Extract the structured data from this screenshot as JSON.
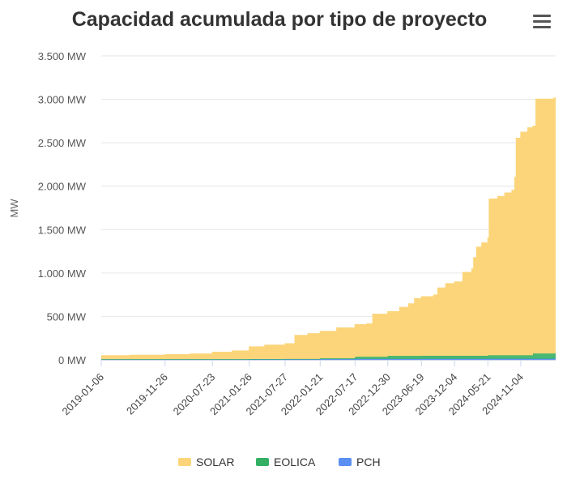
{
  "chart_data": {
    "type": "area",
    "stacked": true,
    "title": "Capacidad acumulada por tipo de proyecto",
    "ylabel": "MW",
    "ylim": [
      0,
      3500
    ],
    "yticks": [
      0,
      500,
      1000,
      1500,
      2000,
      2500,
      3000,
      3500
    ],
    "ytick_labels": [
      "0 MW",
      "500 MW",
      "1.000 MW",
      "1.500 MW",
      "2.000 MW",
      "2.500 MW",
      "3.000 MW",
      "3.500 MW"
    ],
    "x_tick_labels": [
      "2019-01-06",
      "2019-11-26",
      "2020-07-23",
      "2021-01-26",
      "2021-07-27",
      "2022-01-21",
      "2022-07-17",
      "2022-12-30",
      "2023-06-19",
      "2023-12-04",
      "2024-05-21",
      "2024-11-04"
    ],
    "legend_position": "bottom",
    "grid": true,
    "series": [
      {
        "name": "SOLAR",
        "color": "#fcd57b",
        "points": [
          [
            "2019-01-06",
            40
          ],
          [
            "2019-06-01",
            45
          ],
          [
            "2019-11-26",
            52
          ],
          [
            "2020-04-01",
            60
          ],
          [
            "2020-07-23",
            80
          ],
          [
            "2020-11-01",
            95
          ],
          [
            "2021-01-26",
            140
          ],
          [
            "2021-04-15",
            160
          ],
          [
            "2021-07-27",
            175
          ],
          [
            "2021-09-15",
            270
          ],
          [
            "2021-11-20",
            290
          ],
          [
            "2022-01-21",
            310
          ],
          [
            "2022-04-15",
            350
          ],
          [
            "2022-07-17",
            370
          ],
          [
            "2022-09-15",
            380
          ],
          [
            "2022-10-15",
            490
          ],
          [
            "2022-12-30",
            510
          ],
          [
            "2023-03-01",
            560
          ],
          [
            "2023-04-15",
            600
          ],
          [
            "2023-05-15",
            660
          ],
          [
            "2023-06-19",
            680
          ],
          [
            "2023-08-20",
            700
          ],
          [
            "2023-09-10",
            780
          ],
          [
            "2023-10-20",
            830
          ],
          [
            "2023-12-04",
            850
          ],
          [
            "2024-01-15",
            960
          ],
          [
            "2024-03-01",
            1000
          ],
          [
            "2024-03-10",
            1130
          ],
          [
            "2024-03-25",
            1250
          ],
          [
            "2024-04-20",
            1300
          ],
          [
            "2024-05-21",
            1350
          ],
          [
            "2024-05-28",
            1800
          ],
          [
            "2024-07-10",
            1830
          ],
          [
            "2024-08-15",
            1870
          ],
          [
            "2024-09-20",
            1900
          ],
          [
            "2024-10-05",
            2050
          ],
          [
            "2024-10-12",
            2500
          ],
          [
            "2024-11-04",
            2570
          ],
          [
            "2024-12-10",
            2620
          ],
          [
            "2025-01-20",
            2930
          ],
          [
            "2025-04-20",
            2940
          ]
        ]
      },
      {
        "name": "EOLICA",
        "color": "#34b065",
        "points": [
          [
            "2019-01-06",
            3
          ],
          [
            "2021-07-27",
            5
          ],
          [
            "2022-01-21",
            10
          ],
          [
            "2022-07-17",
            25
          ],
          [
            "2022-12-30",
            35
          ],
          [
            "2024-05-21",
            40
          ],
          [
            "2024-12-20",
            40
          ],
          [
            "2025-01-05",
            60
          ],
          [
            "2025-04-20",
            60
          ]
        ]
      },
      {
        "name": "PCH",
        "color": "#5b8ff2",
        "points": [
          [
            "2019-01-06",
            5
          ],
          [
            "2021-01-26",
            6
          ],
          [
            "2022-01-21",
            8
          ],
          [
            "2022-07-17",
            10
          ],
          [
            "2023-06-19",
            12
          ],
          [
            "2025-04-20",
            14
          ]
        ]
      }
    ]
  }
}
